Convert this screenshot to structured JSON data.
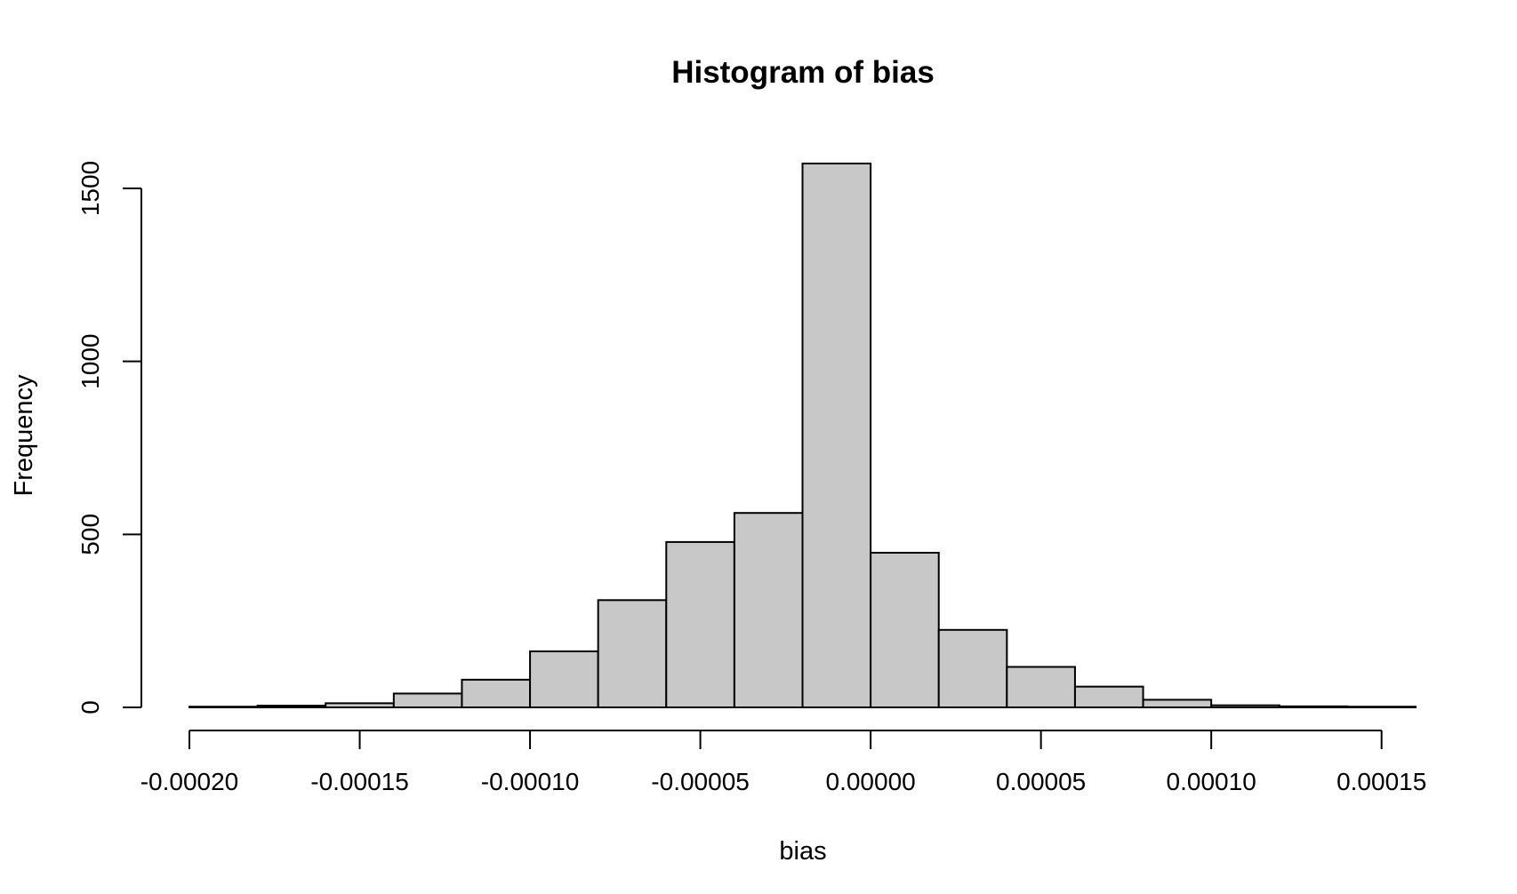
{
  "chart_data": {
    "type": "bar",
    "subtype": "histogram",
    "title": "Histogram of bias",
    "xlabel": "bias",
    "ylabel": "Frequency",
    "bin_edges": [
      -0.0002,
      -0.00018,
      -0.00016,
      -0.00014,
      -0.00012,
      -0.0001,
      -8e-05,
      -6e-05,
      -4e-05,
      -2e-05,
      0.0,
      2e-05,
      4e-05,
      6e-05,
      8e-05,
      0.0001,
      0.00012,
      0.00014,
      0.00016
    ],
    "values": [
      2,
      5,
      12,
      40,
      80,
      162,
      310,
      478,
      562,
      1572,
      447,
      224,
      117,
      60,
      22,
      6,
      3,
      2
    ],
    "xlim": [
      -0.0002,
      0.00016
    ],
    "ylim": [
      0,
      1572
    ],
    "x_ticks": [
      -0.0002,
      -0.00015,
      -0.0001,
      -5e-05,
      0.0,
      5e-05,
      0.0001,
      0.00015
    ],
    "x_tick_labels": [
      "-0.00020",
      "-0.00015",
      "-0.00010",
      "-0.00005",
      "0.00000",
      "0.00005",
      "0.00010",
      "0.00015"
    ],
    "y_ticks": [
      0,
      500,
      1000,
      1500
    ],
    "y_tick_labels": [
      "0",
      "500",
      "1000",
      "1500"
    ],
    "bar_color": "#c8c8c8",
    "grid": false,
    "legend": "none"
  }
}
